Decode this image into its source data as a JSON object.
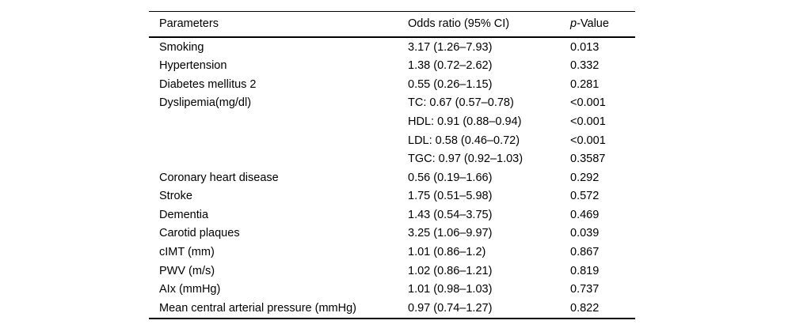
{
  "table": {
    "header": {
      "parameters": "Parameters",
      "odds_ratio": "Odds ratio (95% CI)",
      "p_value_italic": "p",
      "p_value_rest": "-Value"
    },
    "rows": [
      {
        "parameter": "Smoking",
        "odds_ratio": "3.17 (1.26–7.93)",
        "p_value": "0.013"
      },
      {
        "parameter": "Hypertension",
        "odds_ratio": "1.38 (0.72–2.62)",
        "p_value": "0.332"
      },
      {
        "parameter": "Diabetes mellitus 2",
        "odds_ratio": "0.55 (0.26–1.15)",
        "p_value": "0.281"
      },
      {
        "parameter": "Dyslipemia(mg/dl)",
        "odds_ratio": "TC: 0.67 (0.57–0.78)",
        "p_value": "<0.001"
      },
      {
        "parameter": "",
        "odds_ratio": "HDL: 0.91 (0.88–0.94)",
        "p_value": "<0.001"
      },
      {
        "parameter": "",
        "odds_ratio": "LDL: 0.58 (0.46–0.72)",
        "p_value": "<0.001"
      },
      {
        "parameter": "",
        "odds_ratio": "TGC: 0.97 (0.92–1.03)",
        "p_value": "0.3587"
      },
      {
        "parameter": "Coronary heart disease",
        "odds_ratio": "0.56 (0.19–1.66)",
        "p_value": "0.292"
      },
      {
        "parameter": "Stroke",
        "odds_ratio": "1.75 (0.51–5.98)",
        "p_value": "0.572"
      },
      {
        "parameter": "Dementia",
        "odds_ratio": "1.43 (0.54–3.75)",
        "p_value": "0.469"
      },
      {
        "parameter": "Carotid plaques",
        "odds_ratio": "3.25 (1.06–9.97)",
        "p_value": "0.039"
      },
      {
        "parameter": "cIMT (mm)",
        "odds_ratio": "1.01 (0.86–1.2)",
        "p_value": "0.867"
      },
      {
        "parameter": "PWV (m/s)",
        "odds_ratio": "1.02 (0.86–1.21)",
        "p_value": "0.819"
      },
      {
        "parameter": "AIx (mmHg)",
        "odds_ratio": "1.01 (0.98–1.03)",
        "p_value": "0.737"
      },
      {
        "parameter": "Mean central arterial pressure (mmHg)",
        "odds_ratio": "0.97 (0.74–1.27)",
        "p_value": "0.822"
      }
    ],
    "colors": {
      "text": "#000000",
      "background": "#ffffff",
      "rule": "#000000"
    }
  }
}
